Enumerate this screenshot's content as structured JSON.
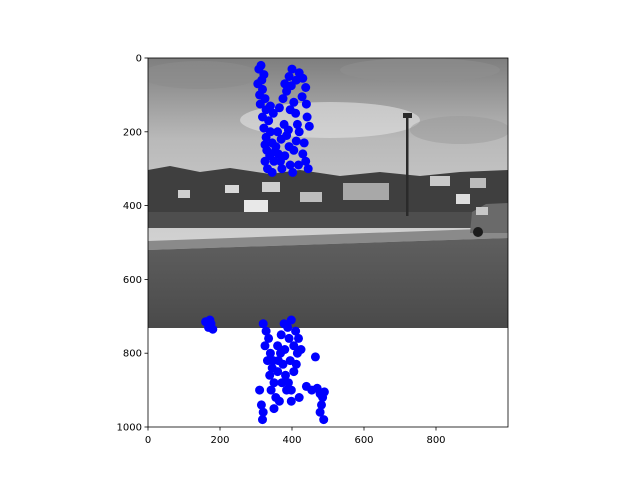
{
  "chart_data": {
    "type": "scatter",
    "title": "",
    "xlabel": "",
    "ylabel": "",
    "xlim": [
      0,
      1000
    ],
    "ylim": [
      1000,
      0
    ],
    "y_inverted": true,
    "grid": false,
    "legend": "none",
    "x_ticks": [
      "0",
      "200",
      "400",
      "600",
      "800"
    ],
    "y_ticks": [
      "0",
      "200",
      "400",
      "600",
      "800",
      "1000"
    ],
    "x_tick_values": [
      0,
      200,
      400,
      600,
      800
    ],
    "y_tick_values": [
      0,
      200,
      400,
      600,
      800,
      1000
    ],
    "background_image": {
      "description": "grayscale photograph: cloudy sky, town houses on a hill, lamp post, grass field, road, parked car",
      "extent_x": [
        0,
        1000
      ],
      "extent_y": [
        0,
        750
      ]
    },
    "point_color": "#0000ff",
    "series": [
      {
        "points": [
          [
            308,
            30
          ],
          [
            314,
            20
          ],
          [
            322,
            45
          ],
          [
            316,
            60
          ],
          [
            305,
            70
          ],
          [
            318,
            85
          ],
          [
            310,
            100
          ],
          [
            325,
            110
          ],
          [
            312,
            125
          ],
          [
            328,
            140
          ],
          [
            318,
            160
          ],
          [
            335,
            170
          ],
          [
            322,
            190
          ],
          [
            340,
            200
          ],
          [
            328,
            215
          ],
          [
            345,
            230
          ],
          [
            330,
            250
          ],
          [
            338,
            265
          ],
          [
            325,
            280
          ],
          [
            332,
            300
          ],
          [
            345,
            310
          ],
          [
            355,
            240
          ],
          [
            362,
            260
          ],
          [
            370,
            220
          ],
          [
            360,
            200
          ],
          [
            378,
            180
          ],
          [
            385,
            210
          ],
          [
            392,
            240
          ],
          [
            380,
            265
          ],
          [
            395,
            290
          ],
          [
            405,
            250
          ],
          [
            412,
            225
          ],
          [
            420,
            200
          ],
          [
            430,
            260
          ],
          [
            438,
            280
          ],
          [
            445,
            300
          ],
          [
            418,
            290
          ],
          [
            402,
            310
          ],
          [
            372,
            300
          ],
          [
            350,
            280
          ],
          [
            340,
            130
          ],
          [
            348,
            150
          ],
          [
            365,
            135
          ],
          [
            375,
            110
          ],
          [
            385,
            90
          ],
          [
            398,
            75
          ],
          [
            412,
            60
          ],
          [
            420,
            40
          ],
          [
            430,
            55
          ],
          [
            438,
            80
          ],
          [
            428,
            105
          ],
          [
            440,
            125
          ],
          [
            400,
            30
          ],
          [
            392,
            50
          ],
          [
            380,
            70
          ],
          [
            405,
            120
          ],
          [
            395,
            140
          ],
          [
            410,
            150
          ],
          [
            442,
            160
          ],
          [
            448,
            185
          ],
          [
            325,
            235
          ],
          [
            352,
            255
          ],
          [
            368,
            280
          ],
          [
            390,
            195
          ],
          [
            415,
            180
          ],
          [
            434,
            230
          ],
          [
            160,
            715
          ],
          [
            168,
            730
          ],
          [
            175,
            720
          ],
          [
            180,
            735
          ],
          [
            172,
            710
          ],
          [
            320,
            720
          ],
          [
            328,
            740
          ],
          [
            335,
            760
          ],
          [
            325,
            780
          ],
          [
            340,
            800
          ],
          [
            332,
            820
          ],
          [
            345,
            840
          ],
          [
            338,
            860
          ],
          [
            350,
            880
          ],
          [
            342,
            900
          ],
          [
            355,
            920
          ],
          [
            360,
            780
          ],
          [
            368,
            800
          ],
          [
            375,
            830
          ],
          [
            382,
            860
          ],
          [
            390,
            880
          ],
          [
            398,
            900
          ],
          [
            405,
            850
          ],
          [
            412,
            830
          ],
          [
            395,
            820
          ],
          [
            370,
            750
          ],
          [
            378,
            720
          ],
          [
            388,
            730
          ],
          [
            398,
            710
          ],
          [
            410,
            740
          ],
          [
            418,
            760
          ],
          [
            425,
            790
          ],
          [
            360,
            850
          ],
          [
            372,
            880
          ],
          [
            385,
            900
          ],
          [
            465,
            810
          ],
          [
            470,
            895
          ],
          [
            478,
            910
          ],
          [
            485,
            920
          ],
          [
            490,
            905
          ],
          [
            482,
            940
          ],
          [
            478,
            960
          ],
          [
            488,
            980
          ],
          [
            310,
            900
          ],
          [
            315,
            940
          ],
          [
            320,
            960
          ],
          [
            318,
            980
          ],
          [
            350,
            950
          ],
          [
            365,
            930
          ],
          [
            398,
            930
          ],
          [
            420,
            920
          ],
          [
            440,
            890
          ],
          [
            455,
            900
          ],
          [
            348,
            820
          ],
          [
            362,
            820
          ],
          [
            380,
            790
          ],
          [
            392,
            760
          ],
          [
            405,
            780
          ],
          [
            415,
            800
          ]
        ]
      }
    ]
  }
}
